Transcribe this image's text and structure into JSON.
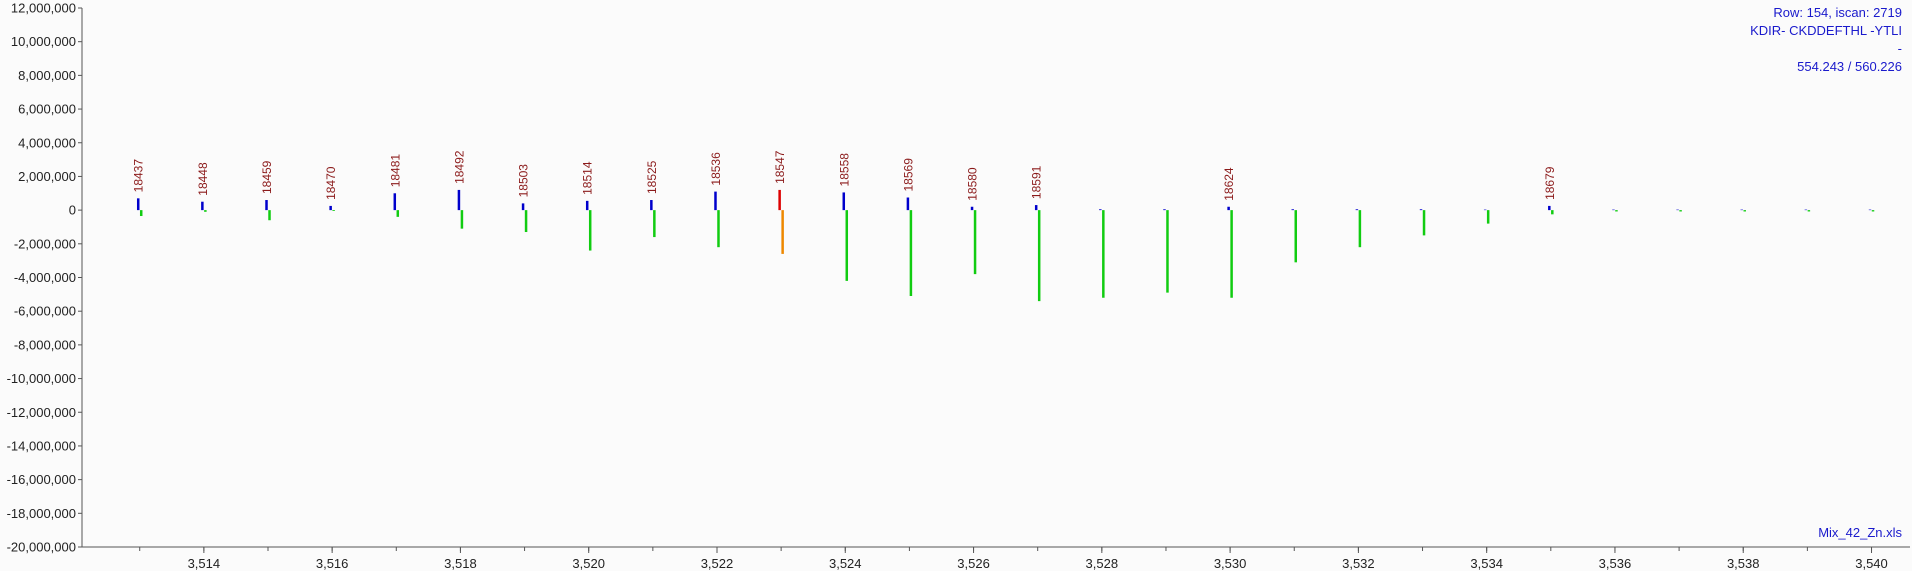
{
  "info": {
    "row_scan": "Row: 154, iscan: 2719",
    "sequence": "KDIR- CKDDEFTHL -YTLI",
    "dash": "-",
    "mz": "554.243 / 560.226",
    "filename": "Mix_42_Zn.xls"
  },
  "colors": {
    "positive": "#0000cc",
    "negative": "#11cc11",
    "highlight_positive": "#dd0000",
    "highlight_negative": "#ee8800",
    "peak_label": "#8b1a1a",
    "info_text": "#1a1acc"
  },
  "chart_data": {
    "type": "bar",
    "title": "",
    "xlabel": "",
    "ylabel": "",
    "xlim": [
      3512.1,
      3540.6
    ],
    "ylim": [
      -20000000,
      12000000
    ],
    "x_ticks": [
      3514,
      3516,
      3518,
      3520,
      3522,
      3524,
      3526,
      3528,
      3530,
      3532,
      3534,
      3536,
      3538,
      3540
    ],
    "x_tick_labels": [
      "3,514",
      "3,516",
      "3,518",
      "3,520",
      "3,522",
      "3,524",
      "3,526",
      "3,528",
      "3,530",
      "3,532",
      "3,534",
      "3,536",
      "3,538",
      "3,540"
    ],
    "y_ticks": [
      12000000,
      10000000,
      8000000,
      6000000,
      4000000,
      2000000,
      0,
      -2000000,
      -4000000,
      -6000000,
      -8000000,
      -10000000,
      -12000000,
      -14000000,
      -16000000,
      -18000000,
      -20000000
    ],
    "y_tick_labels": [
      "12,000,000",
      "10,000,000",
      "8,000,000",
      "6,000,000",
      "4,000,000",
      "2,000,000",
      "0",
      "-2,000,000",
      "-4,000,000",
      "-6,000,000",
      "-8,000,000",
      "-10,000,000",
      "-12,000,000",
      "-14,000,000",
      "-16,000,000",
      "-18,000,000",
      "-20,000,000"
    ],
    "highlight_x": 3523,
    "positive_series": {
      "x": [
        3513,
        3514,
        3515,
        3516,
        3517,
        3518,
        3519,
        3520,
        3521,
        3522,
        3523,
        3524,
        3525,
        3526,
        3527,
        3528,
        3529,
        3530,
        3531,
        3532,
        3533,
        3534,
        3535,
        3536,
        3537,
        3538,
        3539,
        3540
      ],
      "values": [
        700000,
        500000,
        600000,
        250000,
        1000000,
        1200000,
        400000,
        550000,
        600000,
        1100000,
        1200000,
        1050000,
        750000,
        200000,
        300000,
        50000,
        50000,
        200000,
        50000,
        50000,
        50000,
        30000,
        250000,
        30000,
        30000,
        30000,
        30000,
        30000
      ]
    },
    "negative_series": {
      "x": [
        3513,
        3514,
        3515,
        3516,
        3517,
        3518,
        3519,
        3520,
        3521,
        3522,
        3523,
        3524,
        3525,
        3526,
        3527,
        3528,
        3529,
        3530,
        3531,
        3532,
        3533,
        3534,
        3535,
        3536,
        3537,
        3538,
        3539,
        3540
      ],
      "values": [
        -350000,
        -100000,
        -600000,
        -50000,
        -400000,
        -1100000,
        -1300000,
        -2400000,
        -1600000,
        -2200000,
        -2600000,
        -4200000,
        -5100000,
        -3800000,
        -5400000,
        -5200000,
        -4900000,
        -5200000,
        -3100000,
        -2200000,
        -1500000,
        -800000,
        -250000,
        -80000,
        -80000,
        -80000,
        -80000,
        -80000
      ]
    },
    "peak_labels": [
      {
        "x": 3513,
        "text": "18437"
      },
      {
        "x": 3514,
        "text": "18448"
      },
      {
        "x": 3515,
        "text": "18459"
      },
      {
        "x": 3516,
        "text": "18470"
      },
      {
        "x": 3517,
        "text": "18481"
      },
      {
        "x": 3518,
        "text": "18492"
      },
      {
        "x": 3519,
        "text": "18503"
      },
      {
        "x": 3520,
        "text": "18514"
      },
      {
        "x": 3521,
        "text": "18525"
      },
      {
        "x": 3522,
        "text": "18536"
      },
      {
        "x": 3523,
        "text": "18547"
      },
      {
        "x": 3524,
        "text": "18558"
      },
      {
        "x": 3525,
        "text": "18569"
      },
      {
        "x": 3526,
        "text": "18580"
      },
      {
        "x": 3527,
        "text": "18591"
      },
      {
        "x": 3530,
        "text": "18624"
      },
      {
        "x": 3535,
        "text": "18679"
      }
    ]
  }
}
